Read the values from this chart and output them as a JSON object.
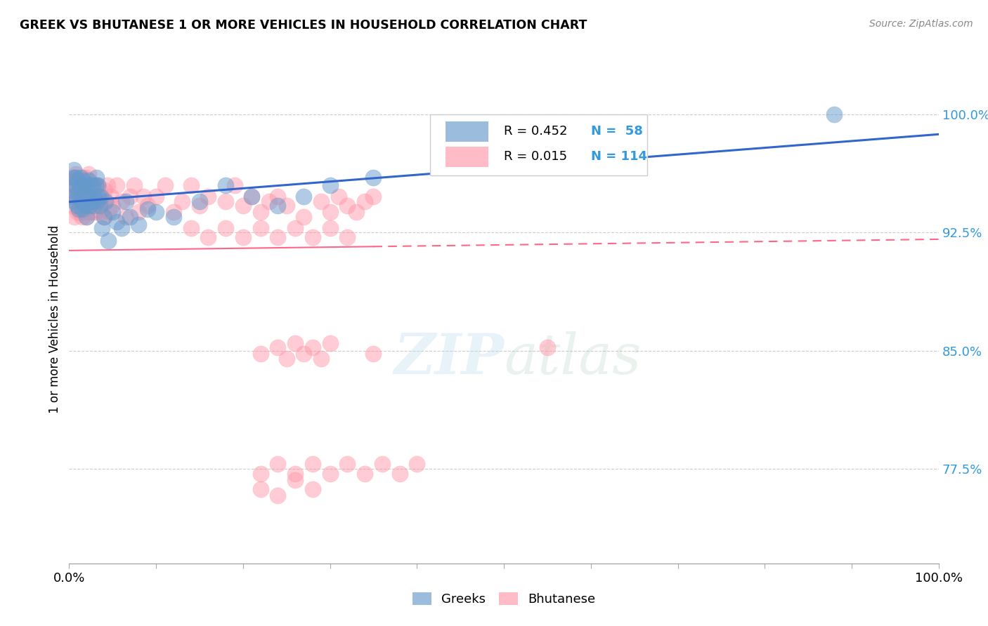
{
  "title": "GREEK VS BHUTANESE 1 OR MORE VEHICLES IN HOUSEHOLD CORRELATION CHART",
  "source": "Source: ZipAtlas.com",
  "ylabel": "1 or more Vehicles in Household",
  "xlim": [
    0.0,
    1.0
  ],
  "ylim": [
    0.715,
    1.025
  ],
  "yticks": [
    0.775,
    0.85,
    0.925,
    1.0
  ],
  "ytick_labels": [
    "77.5%",
    "85.0%",
    "92.5%",
    "100.0%"
  ],
  "greek_color": "#6699CC",
  "bhutanese_color": "#FF99AA",
  "greek_line_color": "#3366CC",
  "bhutanese_line_color": "#FF6688",
  "greek_R": 0.452,
  "greek_N": 58,
  "bhutanese_R": 0.015,
  "bhutanese_N": 114,
  "watermark_zip": "ZIP",
  "watermark_atlas": "atlas",
  "legend_labels": [
    "Greeks",
    "Bhutanese"
  ],
  "greek_x": [
    0.003,
    0.004,
    0.005,
    0.005,
    0.006,
    0.007,
    0.008,
    0.009,
    0.009,
    0.01,
    0.011,
    0.012,
    0.013,
    0.014,
    0.015,
    0.015,
    0.016,
    0.017,
    0.018,
    0.019,
    0.02,
    0.021,
    0.022,
    0.023,
    0.024,
    0.025,
    0.026,
    0.027,
    0.028,
    0.029,
    0.03,
    0.031,
    0.032,
    0.033,
    0.034,
    0.035,
    0.036,
    0.038,
    0.04,
    0.042,
    0.045,
    0.05,
    0.055,
    0.06,
    0.065,
    0.07,
    0.08,
    0.09,
    0.1,
    0.12,
    0.15,
    0.18,
    0.21,
    0.24,
    0.27,
    0.3,
    0.35,
    0.88
  ],
  "greek_y": [
    0.948,
    0.952,
    0.96,
    0.965,
    0.945,
    0.955,
    0.96,
    0.942,
    0.958,
    0.95,
    0.94,
    0.952,
    0.96,
    0.945,
    0.94,
    0.955,
    0.958,
    0.948,
    0.942,
    0.955,
    0.935,
    0.948,
    0.958,
    0.942,
    0.948,
    0.955,
    0.945,
    0.955,
    0.942,
    0.948,
    0.955,
    0.96,
    0.945,
    0.955,
    0.948,
    0.942,
    0.948,
    0.928,
    0.935,
    0.945,
    0.92,
    0.938,
    0.932,
    0.928,
    0.945,
    0.935,
    0.93,
    0.94,
    0.938,
    0.935,
    0.945,
    0.955,
    0.948,
    0.942,
    0.948,
    0.955,
    0.96,
    1.0
  ],
  "bhutanese_x": [
    0.003,
    0.004,
    0.005,
    0.005,
    0.006,
    0.007,
    0.008,
    0.008,
    0.009,
    0.01,
    0.011,
    0.012,
    0.012,
    0.013,
    0.014,
    0.015,
    0.015,
    0.016,
    0.016,
    0.017,
    0.018,
    0.018,
    0.019,
    0.02,
    0.021,
    0.022,
    0.022,
    0.023,
    0.024,
    0.025,
    0.026,
    0.027,
    0.028,
    0.029,
    0.03,
    0.031,
    0.032,
    0.033,
    0.034,
    0.035,
    0.036,
    0.038,
    0.04,
    0.041,
    0.042,
    0.044,
    0.046,
    0.048,
    0.05,
    0.055,
    0.06,
    0.065,
    0.07,
    0.075,
    0.08,
    0.085,
    0.09,
    0.1,
    0.11,
    0.12,
    0.13,
    0.14,
    0.15,
    0.16,
    0.18,
    0.19,
    0.2,
    0.21,
    0.22,
    0.23,
    0.24,
    0.25,
    0.27,
    0.29,
    0.3,
    0.31,
    0.32,
    0.33,
    0.34,
    0.35,
    0.14,
    0.16,
    0.18,
    0.2,
    0.22,
    0.24,
    0.26,
    0.28,
    0.3,
    0.32,
    0.22,
    0.24,
    0.25,
    0.26,
    0.27,
    0.28,
    0.29,
    0.3,
    0.35,
    0.55,
    0.22,
    0.24,
    0.26,
    0.28,
    0.3,
    0.32,
    0.34,
    0.36,
    0.38,
    0.4,
    0.22,
    0.24,
    0.26,
    0.28
  ],
  "bhutanese_y": [
    0.955,
    0.942,
    0.96,
    0.948,
    0.935,
    0.955,
    0.962,
    0.945,
    0.938,
    0.952,
    0.945,
    0.938,
    0.955,
    0.948,
    0.942,
    0.935,
    0.955,
    0.948,
    0.96,
    0.938,
    0.952,
    0.945,
    0.96,
    0.935,
    0.948,
    0.952,
    0.962,
    0.938,
    0.945,
    0.955,
    0.948,
    0.938,
    0.955,
    0.945,
    0.952,
    0.938,
    0.948,
    0.955,
    0.945,
    0.952,
    0.938,
    0.948,
    0.935,
    0.952,
    0.945,
    0.955,
    0.938,
    0.948,
    0.942,
    0.955,
    0.945,
    0.935,
    0.948,
    0.955,
    0.938,
    0.948,
    0.942,
    0.948,
    0.955,
    0.938,
    0.945,
    0.955,
    0.942,
    0.948,
    0.945,
    0.955,
    0.942,
    0.948,
    0.938,
    0.945,
    0.948,
    0.942,
    0.935,
    0.945,
    0.938,
    0.948,
    0.942,
    0.938,
    0.945,
    0.948,
    0.928,
    0.922,
    0.928,
    0.922,
    0.928,
    0.922,
    0.928,
    0.922,
    0.928,
    0.922,
    0.848,
    0.852,
    0.845,
    0.855,
    0.848,
    0.852,
    0.845,
    0.855,
    0.848,
    0.852,
    0.772,
    0.778,
    0.772,
    0.778,
    0.772,
    0.778,
    0.772,
    0.778,
    0.772,
    0.778,
    0.762,
    0.758,
    0.768,
    0.762
  ]
}
